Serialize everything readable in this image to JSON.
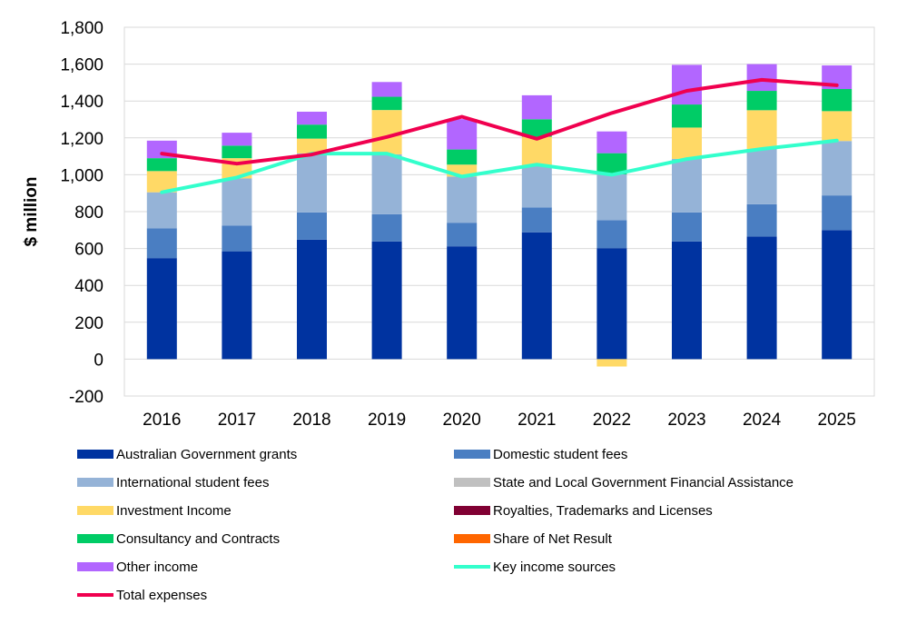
{
  "chart_data": {
    "type": "bar",
    "stacked": true,
    "title": "",
    "xlabel": "",
    "ylabel": "$ million",
    "ylim": [
      -200,
      1800
    ],
    "ytick_step": 200,
    "yticks": [
      "-200",
      "0",
      "200",
      "400",
      "600",
      "800",
      "1,000",
      "1,200",
      "1,400",
      "1,600",
      "1,800"
    ],
    "grid": true,
    "legend_position": "bottom",
    "categories": [
      "2016",
      "2017",
      "2018",
      "2019",
      "2020",
      "2021",
      "2022",
      "2023",
      "2024",
      "2025"
    ],
    "series": [
      {
        "name": "Australian Government grants",
        "kind": "bar",
        "color": "#0033A0",
        "values": [
          548,
          585,
          648,
          638,
          612,
          688,
          602,
          638,
          665,
          700
        ]
      },
      {
        "name": "Domestic student fees",
        "kind": "bar",
        "color": "#4A7EC2",
        "values": [
          162,
          140,
          148,
          148,
          128,
          135,
          152,
          158,
          175,
          188
        ]
      },
      {
        "name": "International student fees",
        "kind": "bar",
        "color": "#95B3D7",
        "values": [
          195,
          255,
          320,
          325,
          250,
          228,
          248,
          290,
          300,
          295
        ]
      },
      {
        "name": "State and Local Government Financial Assistance",
        "kind": "bar",
        "color": "#C0C0C0",
        "values": [
          0,
          0,
          0,
          0,
          0,
          0,
          0,
          0,
          0,
          0
        ]
      },
      {
        "name": "Investment Income",
        "kind": "bar",
        "color": "#FFD966",
        "values": [
          115,
          110,
          80,
          240,
          65,
          155,
          -40,
          170,
          210,
          162
        ]
      },
      {
        "name": "Royalties, Trademarks and Licenses",
        "kind": "bar",
        "color": "#800033",
        "values": [
          0,
          0,
          0,
          0,
          0,
          0,
          0,
          0,
          0,
          0
        ]
      },
      {
        "name": "Consultancy and Contracts",
        "kind": "bar",
        "color": "#00CC66",
        "values": [
          70,
          68,
          76,
          72,
          82,
          95,
          115,
          125,
          105,
          120
        ]
      },
      {
        "name": "Share of Net Result",
        "kind": "bar",
        "color": "#FF6600",
        "values": [
          0,
          0,
          0,
          0,
          0,
          0,
          0,
          0,
          0,
          0
        ]
      },
      {
        "name": "Other income",
        "kind": "bar",
        "color": "#B266FF",
        "values": [
          95,
          70,
          70,
          80,
          165,
          130,
          118,
          215,
          145,
          128
        ]
      },
      {
        "name": "Key income sources",
        "kind": "line",
        "color": "#33FFCC",
        "values": [
          905,
          985,
          1115,
          1115,
          990,
          1055,
          1000,
          1085,
          1140,
          1185
        ]
      },
      {
        "name": "Total expenses",
        "kind": "line",
        "color": "#F0004F",
        "values": [
          1115,
          1060,
          1110,
          1205,
          1315,
          1195,
          1335,
          1455,
          1515,
          1485
        ]
      }
    ]
  }
}
